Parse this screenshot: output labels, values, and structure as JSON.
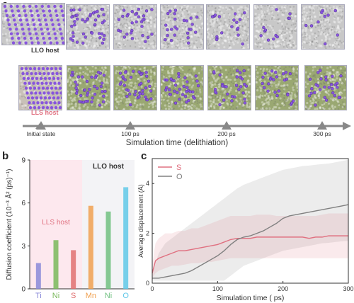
{
  "panel_a": {
    "label": "a",
    "host_top": "LLO host",
    "host_bottom": "LLS host",
    "timeline": {
      "markers": [
        "Initial state",
        "100 ps",
        "200 ps",
        "300 ps"
      ],
      "axis_label": "Simulation time (delithiation)"
    },
    "colors": {
      "top_host": "#333333",
      "bottom_host": "#e07080",
      "arrow": "#888888",
      "atom": "#8855dd",
      "matrix_top": "#c8c8c8",
      "matrix_bottom": "#9aa872"
    }
  },
  "panel_b": {
    "label": "b",
    "chart_data": {
      "type": "bar",
      "ylabel": "Diffusion coefficient (10⁻³ Å² (ps)⁻¹)",
      "ylim": [
        0,
        9
      ],
      "yticks": [
        "0",
        "3",
        "6",
        "9"
      ],
      "groups": [
        {
          "name": "LLS host",
          "color": "#e07080",
          "background": "#fde8ee"
        },
        {
          "name": "LLO host",
          "color": "#333333",
          "background": "#f3f3f6"
        }
      ],
      "categories": [
        "Ti",
        "Ni",
        "S",
        "Mn",
        "Ni",
        "O"
      ],
      "values": [
        1.8,
        3.4,
        2.7,
        5.8,
        5.4,
        7.1
      ],
      "colors": [
        "#8a8ad8",
        "#7ab85c",
        "#e07070",
        "#f0a050",
        "#70c080",
        "#60c8e8"
      ]
    }
  },
  "panel_c": {
    "label": "c",
    "chart_data": {
      "type": "line",
      "xlabel": "Simulation time ( ps)",
      "ylabel": "Average displacement (Å)",
      "xlim": [
        0,
        300
      ],
      "ylim": [
        0,
        5
      ],
      "xticks": [
        "0",
        "100",
        "200",
        "300"
      ],
      "yticks": [
        "0",
        "2",
        "4"
      ],
      "series": [
        {
          "name": "S",
          "color": "#e07080",
          "x": [
            0,
            5,
            10,
            20,
            30,
            40,
            50,
            60,
            70,
            80,
            90,
            100,
            110,
            120,
            130,
            140,
            150,
            160,
            170,
            180,
            190,
            200,
            210,
            220,
            230,
            240,
            250,
            260,
            270,
            280,
            290,
            300
          ],
          "y": [
            0.4,
            0.9,
            1.0,
            1.1,
            1.2,
            1.3,
            1.3,
            1.35,
            1.4,
            1.45,
            1.5,
            1.55,
            1.65,
            1.75,
            1.8,
            1.8,
            1.8,
            1.85,
            1.85,
            1.85,
            1.85,
            1.85,
            1.85,
            1.85,
            1.85,
            1.8,
            1.85,
            1.85,
            1.9,
            1.9,
            1.9,
            1.9
          ],
          "band_low": [
            0.2,
            0.4,
            0.5,
            0.6,
            0.7,
            0.7,
            0.75,
            0.8,
            0.8,
            0.85,
            0.85,
            0.9,
            0.95,
            1.0,
            1.0,
            1.0,
            1.0,
            1.0,
            1.0,
            1.0,
            1.0,
            1.0,
            1.0,
            1.0,
            1.0,
            1.0,
            1.0,
            1.0,
            1.0,
            1.0,
            1.0,
            1.0
          ],
          "band_high": [
            0.8,
            1.6,
            1.8,
            2.0,
            2.0,
            2.1,
            2.1,
            2.2,
            2.2,
            2.3,
            2.4,
            2.5,
            2.6,
            2.7,
            2.7,
            2.7,
            2.7,
            2.75,
            2.75,
            2.75,
            2.7,
            2.7,
            2.7,
            2.7,
            2.7,
            2.7,
            2.7,
            2.75,
            2.8,
            2.8,
            2.8,
            2.8
          ]
        },
        {
          "name": "O",
          "color": "#808080",
          "x": [
            0,
            10,
            20,
            30,
            40,
            50,
            60,
            70,
            80,
            90,
            100,
            110,
            120,
            130,
            140,
            150,
            160,
            170,
            180,
            190,
            200,
            210,
            220,
            230,
            240,
            250,
            260,
            270,
            280,
            290,
            300
          ],
          "y": [
            0.2,
            0.2,
            0.25,
            0.3,
            0.35,
            0.4,
            0.5,
            0.65,
            0.8,
            0.95,
            1.1,
            1.3,
            1.55,
            1.75,
            1.85,
            1.9,
            2.0,
            2.1,
            2.25,
            2.4,
            2.6,
            2.7,
            2.75,
            2.8,
            2.85,
            2.9,
            2.95,
            3.0,
            3.05,
            3.1,
            3.15
          ],
          "band_low": [
            0.1,
            0.1,
            0.1,
            0.1,
            0.1,
            0.1,
            0.1,
            0.1,
            0.1,
            0.1,
            0.1,
            0.1,
            0.3,
            0.5,
            0.7,
            0.8,
            0.9,
            1.0,
            1.1,
            1.2,
            1.3,
            1.35,
            1.4,
            1.45,
            1.5,
            1.55,
            1.6,
            1.62,
            1.65,
            1.68,
            1.7
          ],
          "band_high": [
            0.4,
            1.2,
            1.6,
            1.8,
            2.0,
            2.2,
            2.4,
            2.6,
            2.8,
            3.0,
            3.2,
            3.4,
            3.6,
            3.8,
            3.95,
            4.05,
            4.15,
            4.25,
            4.35,
            4.45,
            4.55,
            4.6,
            4.65,
            4.7,
            4.72,
            4.75,
            4.78,
            4.8,
            4.85,
            4.9,
            4.95
          ]
        }
      ]
    }
  }
}
